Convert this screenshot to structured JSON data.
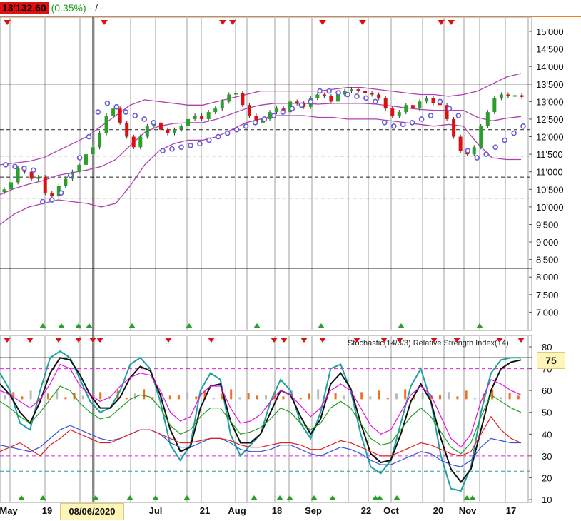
{
  "header": {
    "price": "13'132.60",
    "change": "(0.35%)",
    "suffix": "- / -"
  },
  "indicator_title": "Stochastic(14/3/3) Relative Strength Index(14)",
  "crosshair_date": "08/06/2020",
  "stoch_marker_value": "75",
  "colors": {
    "up_candle": "#2aa02a",
    "down_candle": "#dd1010",
    "bollinger": "#b040b0",
    "psar": "#6a5ad8",
    "stoch_k": "#20a0a0",
    "stoch_d": "#111111",
    "rsi": "#e010e0",
    "green_line": "#20a020",
    "red_line": "#e02020",
    "blue_line": "#3050e0",
    "orange_hist": "#f07020"
  },
  "chart_data": [
    {
      "type": "candlestick",
      "ylim": [
        6500,
        15250
      ],
      "y_ticks": [
        "15'000",
        "14'500",
        "14'000",
        "13'500",
        "13'000",
        "12'500",
        "12'000",
        "11'500",
        "11'000",
        "10'500",
        "10'000",
        "9'500",
        "9'000",
        "8'500",
        "8'000",
        "7'500",
        "7'000"
      ],
      "y_tick_values": [
        15000,
        14500,
        14000,
        13500,
        13000,
        12500,
        12000,
        11500,
        11000,
        10500,
        10000,
        9500,
        9000,
        8500,
        8000,
        7500,
        7000
      ],
      "x_labels": [
        "May",
        "19",
        "08/06/2020",
        "Jul",
        "21",
        "Aug",
        "18",
        "Sep",
        "22",
        "Oct",
        "20",
        "Nov",
        "17"
      ],
      "horizontal_levels_solid": [
        13500,
        8250
      ],
      "horizontal_levels_dashed": [
        12200,
        11450,
        10850,
        10250
      ],
      "close_series": [
        10500,
        10700,
        11100,
        11000,
        10800,
        10850,
        10400,
        10300,
        10600,
        10800,
        11000,
        11200,
        11500,
        11700,
        12100,
        12600,
        12800,
        12400,
        12000,
        11700,
        12000,
        12300,
        12400,
        12200,
        12100,
        12200,
        12300,
        12500,
        12600,
        12500,
        12700,
        12800,
        13000,
        13200,
        13250,
        12900,
        12600,
        12400,
        12500,
        12700,
        12800,
        12700,
        13000,
        12950,
        12850,
        13100,
        13200,
        13150,
        13000,
        13200,
        13300,
        13350,
        13300,
        13250,
        13200,
        13100,
        12800,
        12600,
        12700,
        12900,
        12800,
        13000,
        13100,
        12950,
        12900,
        12500,
        12000,
        11600,
        11500,
        11700,
        12300,
        12700,
        13100,
        13200,
        13150,
        13180,
        13132
      ],
      "bollinger_upper": [
        11200,
        11250,
        11300,
        11400,
        11600,
        11800,
        12000,
        12300,
        12600,
        12900,
        13050,
        13000,
        12950,
        12900,
        12900,
        13000,
        13100,
        13200,
        13300,
        13300,
        13300,
        13300,
        13300,
        13350,
        13400,
        13400,
        13350,
        13300,
        13250,
        13200,
        13200,
        13150,
        13200,
        13300,
        13500,
        13700,
        13800
      ],
      "bollinger_lower": [
        9500,
        9800,
        10000,
        10100,
        10200,
        10150,
        10100,
        10000,
        10100,
        10600,
        11200,
        11600,
        11800,
        11900,
        11900,
        12000,
        12200,
        12400,
        12500,
        12600,
        12600,
        12600,
        12550,
        12550,
        12500,
        12500,
        12500,
        12450,
        12400,
        12350,
        12300,
        12350,
        12300,
        11800,
        11400,
        11350,
        11350
      ],
      "psar_points": [
        11200,
        11150,
        11100,
        11050,
        10150,
        10200,
        10400,
        10900,
        11400,
        12000,
        12700,
        12950,
        12850,
        12700,
        12600,
        12500,
        12400,
        11600,
        11650,
        11700,
        11750,
        11800,
        11900,
        12000,
        12100,
        12200,
        12300,
        12400,
        12500,
        12600,
        12700,
        12800,
        12900,
        13000,
        13300,
        13300,
        13250,
        13200,
        13150,
        13100,
        13000,
        12400,
        12300,
        12350,
        12400,
        12500,
        12600,
        13000,
        12800,
        12600,
        11600,
        11400,
        11500,
        11700,
        11900,
        12100,
        12300
      ]
    },
    {
      "type": "line",
      "title": "Stochastic(14/3/3) Relative Strength Index(14)",
      "ylim": [
        10,
        82
      ],
      "y_ticks": [
        "80",
        "75",
        "70",
        "60",
        "50",
        "40",
        "30",
        "20",
        "10"
      ],
      "y_tick_values": [
        80,
        75,
        70,
        60,
        50,
        40,
        30,
        20,
        10
      ],
      "ref_lines_dashed": [
        70,
        30,
        23
      ],
      "ref_line_solid": 75,
      "series": [
        {
          "values": [
            68,
            60,
            45,
            42,
            60,
            75,
            78,
            75,
            65,
            55,
            50,
            52,
            60,
            72,
            75,
            70,
            55,
            35,
            28,
            35,
            60,
            68,
            65,
            40,
            30,
            35,
            40,
            55,
            65,
            60,
            45,
            38,
            50,
            70,
            72,
            60,
            40,
            25,
            22,
            28,
            45,
            62,
            70,
            55,
            30,
            15,
            14,
            25,
            50,
            68,
            74,
            75,
            75
          ]
        },
        {
          "values": [
            63,
            58,
            50,
            45,
            55,
            68,
            75,
            74,
            67,
            58,
            52,
            52,
            57,
            66,
            71,
            69,
            58,
            42,
            32,
            34,
            52,
            62,
            63,
            46,
            36,
            36,
            40,
            50,
            60,
            58,
            48,
            40,
            47,
            63,
            68,
            61,
            45,
            31,
            27,
            28,
            40,
            55,
            63,
            55,
            38,
            24,
            18,
            24,
            42,
            60,
            70,
            73,
            74
          ]
        },
        {
          "values": [
            60,
            58,
            55,
            52,
            56,
            63,
            72,
            70,
            62,
            58,
            55,
            57,
            62,
            66,
            68,
            67,
            60,
            50,
            46,
            48,
            58,
            62,
            62,
            52,
            45,
            46,
            49,
            55,
            60,
            58,
            53,
            48,
            52,
            60,
            63,
            60,
            52,
            44,
            40,
            42,
            50,
            58,
            62,
            58,
            48,
            38,
            34,
            40,
            55,
            65,
            63,
            60,
            58
          ]
        },
        {
          "values": [
            55,
            52,
            48,
            45,
            50,
            56,
            62,
            60,
            54,
            50,
            47,
            48,
            52,
            56,
            58,
            57,
            52,
            44,
            40,
            42,
            48,
            52,
            52,
            46,
            40,
            41,
            43,
            47,
            52,
            50,
            45,
            42,
            45,
            52,
            55,
            52,
            45,
            38,
            35,
            36,
            42,
            48,
            52,
            48,
            41,
            34,
            31,
            36,
            48,
            58,
            55,
            52,
            50
          ]
        },
        {
          "values": [
            35,
            34,
            33,
            32,
            34,
            38,
            42,
            44,
            42,
            40,
            38,
            37,
            38,
            40,
            42,
            42,
            40,
            36,
            34,
            34,
            36,
            38,
            38,
            36,
            33,
            32,
            32,
            33,
            35,
            35,
            33,
            31,
            30,
            32,
            34,
            33,
            31,
            28,
            26,
            26,
            28,
            30,
            32,
            31,
            28,
            26,
            25,
            28,
            34,
            38,
            37,
            36,
            36
          ]
        },
        {
          "values": [
            32,
            34,
            36,
            33,
            30,
            35,
            38,
            42,
            40,
            38,
            36,
            36,
            38,
            40,
            42,
            42,
            40,
            38,
            36,
            36,
            37,
            38,
            38,
            37,
            35,
            34,
            34,
            35,
            36,
            36,
            35,
            33,
            33,
            35,
            37,
            36,
            34,
            32,
            30,
            30,
            32,
            34,
            36,
            35,
            33,
            31,
            30,
            32,
            40,
            48,
            42,
            38,
            36
          ]
        }
      ]
    }
  ]
}
